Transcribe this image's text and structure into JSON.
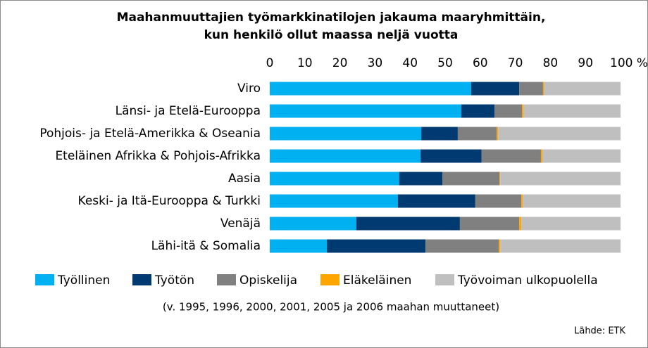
{
  "chart_data": {
    "type": "stacked-bar-horizontal",
    "title": [
      "Maahanmuuttajien työmarkkinatilojen jakauma maaryhmittäin,",
      "kun henkilö ollut maassa neljä vuotta"
    ],
    "categories": [
      "Viro",
      "Länsi- ja Etelä-Eurooppa",
      "Pohjois- ja Etelä-Amerikka & Oseania",
      "Eteläinen Afrikka & Pohjois-Afrikka",
      "Aasia",
      "Keski- ja Itä-Eurooppa & Turkki",
      "Venäjä",
      "Lähi-itä & Somalia"
    ],
    "series": [
      {
        "name": "Työllinen",
        "color": "#00b0f0",
        "values": [
          57.4,
          54.6,
          43.2,
          43.0,
          36.9,
          36.5,
          24.7,
          16.3
        ]
      },
      {
        "name": "Työtön",
        "color": "#003a70",
        "values": [
          13.7,
          9.5,
          10.4,
          17.4,
          12.3,
          22.1,
          29.5,
          28.1
        ]
      },
      {
        "name": "Opiskelija",
        "color": "#808080",
        "values": [
          6.8,
          7.8,
          11.1,
          16.9,
          16.3,
          13.1,
          16.9,
          20.9
        ]
      },
      {
        "name": "Eläkeläinen",
        "color": "#ffa500",
        "values": [
          0.3,
          0.4,
          0.4,
          0.4,
          0.2,
          0.4,
          0.6,
          0.4
        ]
      },
      {
        "name": "Työvoiman ulkopuolella",
        "color": "#bfbfbf",
        "values": [
          21.8,
          27.7,
          34.9,
          22.3,
          34.3,
          27.9,
          28.3,
          34.3
        ]
      }
    ],
    "xlim": [
      0,
      100
    ],
    "xticks": [
      0,
      10,
      20,
      30,
      40,
      50,
      60,
      70,
      80,
      90,
      {
        "value": 100,
        "label": "100 %"
      }
    ],
    "note": "(v. 1995, 1996, 2000, 2001, 2005 ja 2006 maahan muuttaneet)",
    "source": "Lähde: ETK"
  }
}
